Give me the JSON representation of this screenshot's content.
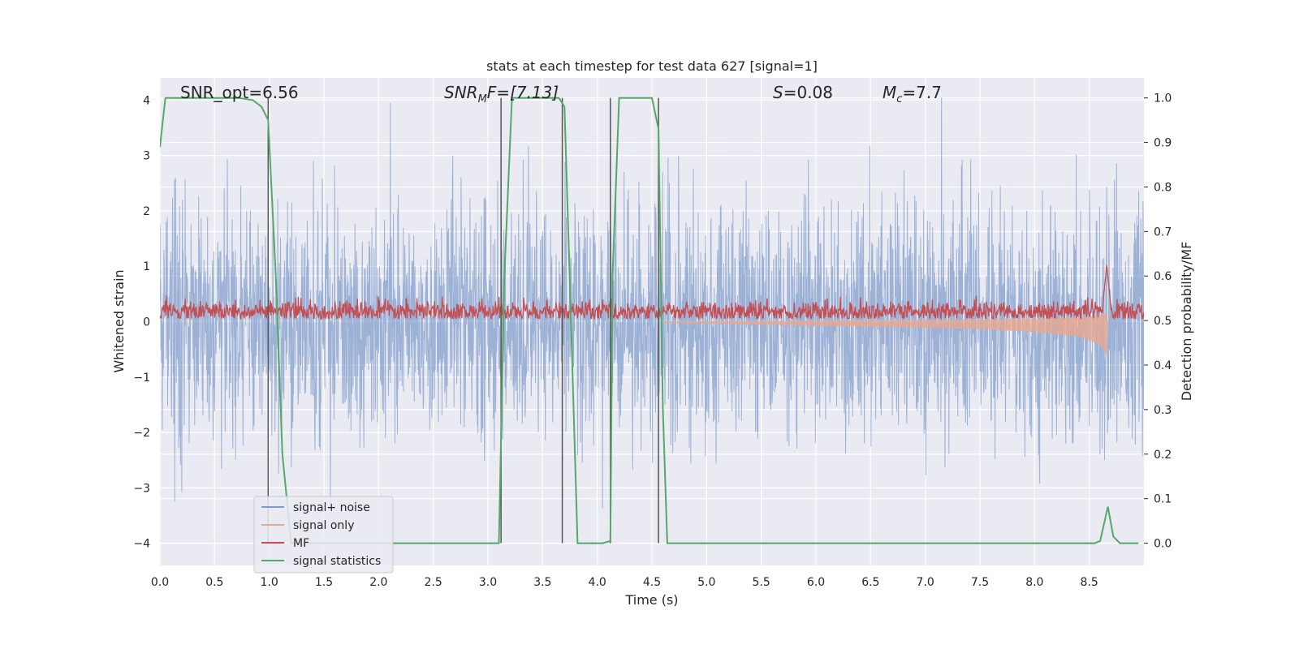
{
  "chart_data": {
    "type": "line",
    "title": "stats at each timestep for test data 627 [signal=1]",
    "xlabel": "Time (s)",
    "ylabel_left": "Whitened strain",
    "ylabel_right": "Detection probability/MF",
    "xlim": [
      0,
      9.0
    ],
    "ylim_left": [
      -4.4,
      4.4
    ],
    "ylim_right": [
      -0.05,
      1.045
    ],
    "x_ticks": [
      0.0,
      0.5,
      1.0,
      1.5,
      2.0,
      2.5,
      3.0,
      3.5,
      4.0,
      4.5,
      5.0,
      5.5,
      6.0,
      6.5,
      7.0,
      7.5,
      8.0,
      8.5
    ],
    "x_tick_labels": [
      "0.0",
      "0.5",
      "1.0",
      "1.5",
      "2.0",
      "2.5",
      "3.0",
      "3.5",
      "4.0",
      "4.5",
      "5.0",
      "5.5",
      "6.0",
      "6.5",
      "7.0",
      "7.5",
      "8.0",
      "8.5"
    ],
    "y_left_ticks": [
      -4,
      -3,
      -2,
      -1,
      0,
      1,
      2,
      3,
      4
    ],
    "y_left_tick_labels": [
      "−4",
      "−3",
      "−2",
      "−1",
      "0",
      "1",
      "2",
      "3",
      "4"
    ],
    "y_right_ticks": [
      0.0,
      0.1,
      0.2,
      0.3,
      0.4,
      0.5,
      0.6,
      0.7,
      0.8,
      0.9,
      1.0
    ],
    "y_right_tick_labels": [
      "0.0",
      "0.1",
      "0.2",
      "0.3",
      "0.4",
      "0.5",
      "0.6",
      "0.7",
      "0.8",
      "0.9",
      "1.0"
    ],
    "grid": true,
    "annotations": {
      "snr_opt": "SNR_opt=6.56",
      "snr_mf_main": "SNR",
      "snr_mf_sub": "M",
      "snr_mf_rest": "F=[7.13]",
      "s_var": "S",
      "s_rest": "=0.08",
      "mc_var": "M",
      "mc_sub": "c",
      "mc_rest": "=7.7"
    },
    "vertical_markers": [
      0.99,
      3.12,
      3.68,
      4.12,
      4.56
    ],
    "legend": {
      "position": "lower-left",
      "entries": [
        {
          "label": "signal+ noise",
          "color": "#7e9bcb"
        },
        {
          "label": "signal only",
          "color": "#e8a88e"
        },
        {
          "label": "MF",
          "color": "#c44e52"
        },
        {
          "label": "signal statistics",
          "color": "#55a868"
        }
      ]
    },
    "series": [
      {
        "name": "signal+ noise",
        "axis": "left",
        "description_values": "whitened noisy strain, roughly within ±3 with peaks near ±4"
      },
      {
        "name": "signal only",
        "axis": "left",
        "x": [
          4.6,
          5.5,
          6.5,
          7.5,
          8.0,
          8.4,
          8.6,
          8.66,
          8.67
        ],
        "envelope": [
          0.02,
          0.05,
          0.08,
          0.12,
          0.17,
          0.24,
          0.38,
          0.55,
          0.0
        ]
      },
      {
        "name": "MF",
        "axis": "right",
        "description_values": "matched filter output fluctuating around 0.52, peak ~0.62 at 8.66 s"
      },
      {
        "name": "signal statistics",
        "axis": "right",
        "x": [
          0.0,
          0.05,
          0.55,
          0.72,
          0.85,
          0.93,
          0.99,
          1.06,
          1.12,
          1.2,
          3.02,
          3.1,
          3.15,
          3.22,
          3.65,
          3.7,
          3.76,
          3.82,
          4.05,
          4.12,
          4.14,
          4.2,
          4.5,
          4.56,
          4.6,
          4.64,
          8.45,
          8.55,
          8.6,
          8.67,
          8.72,
          8.78,
          8.95
        ],
        "values": [
          0.89,
          1.0,
          1.0,
          1.0,
          0.995,
          0.98,
          0.95,
          0.6,
          0.2,
          0.0,
          0.0,
          0.0,
          0.6,
          1.0,
          1.0,
          0.98,
          0.5,
          0.0,
          0.0,
          0.005,
          0.6,
          1.0,
          1.0,
          0.93,
          0.3,
          0.0,
          0.0,
          0.0,
          0.005,
          0.082,
          0.015,
          0.0,
          0.0
        ]
      }
    ]
  }
}
